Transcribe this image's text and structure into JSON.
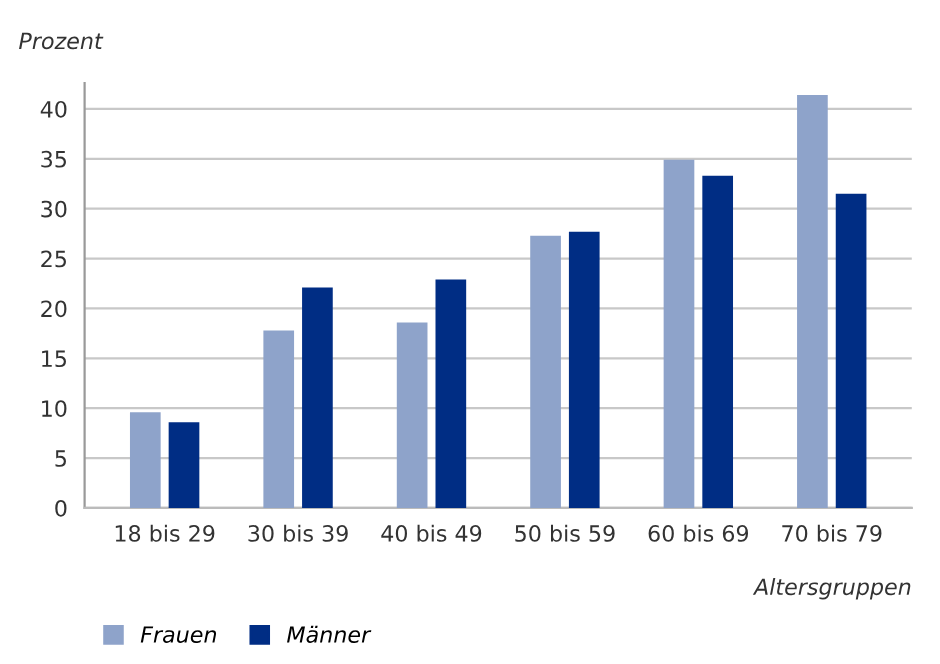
{
  "chart_data": {
    "type": "bar",
    "categories": [
      "18 bis 29",
      "30 bis 39",
      "40 bis 49",
      "50 bis 59",
      "60 bis 69",
      "70 bis 79"
    ],
    "series": [
      {
        "name": "Frauen",
        "color": "#8ea3ca",
        "values": [
          9.6,
          17.8,
          18.6,
          27.3,
          34.9,
          41.4
        ]
      },
      {
        "name": "Männer",
        "color": "#002d84",
        "values": [
          8.6,
          22.1,
          22.9,
          27.7,
          33.3,
          31.5
        ]
      }
    ],
    "ylabel": "Prozent",
    "xlabel": "Altersgruppen",
    "ylim": [
      0,
      42.6
    ],
    "yticks": [
      0,
      5,
      10,
      15,
      20,
      25,
      30,
      35,
      40
    ],
    "grid": "y",
    "legend": "bottom left"
  }
}
